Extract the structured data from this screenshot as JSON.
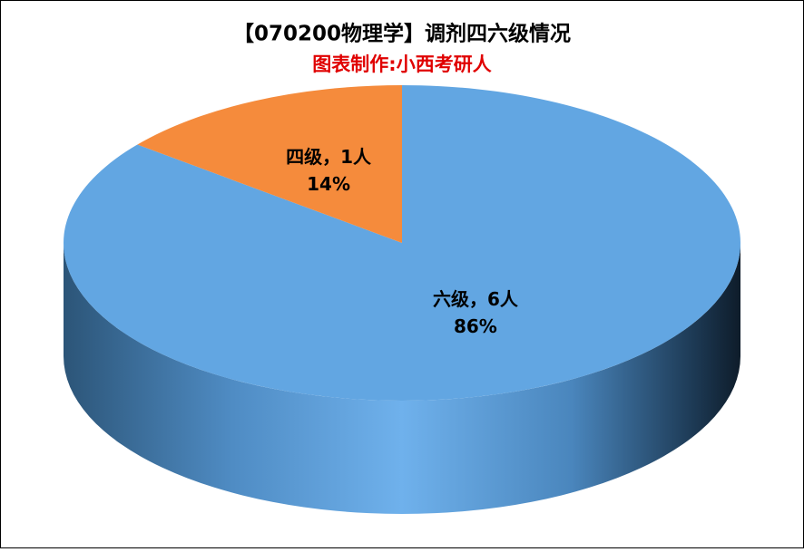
{
  "chart_data": {
    "type": "pie3d",
    "title": "【070200物理学】调剂四六级情况",
    "subtitle": "图表制作:小西考研人",
    "values": [
      6,
      1
    ],
    "value_labels": [
      "六级，6人",
      "四级，1人"
    ],
    "percent_labels": [
      "86%",
      "14%"
    ],
    "colors": [
      "#62a6e2",
      "#f58b3c"
    ]
  }
}
